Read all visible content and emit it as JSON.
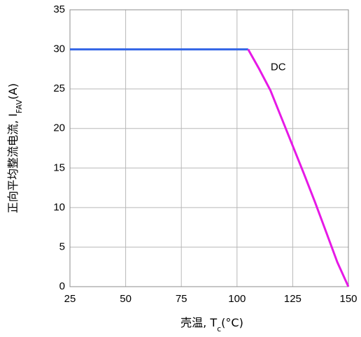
{
  "chart_data": {
    "type": "line",
    "title": "",
    "xlabel": {
      "main": "壳温, T",
      "sub": "c",
      "post": "(°C)"
    },
    "ylabel": {
      "main": "正向平均整流电流, I",
      "sub": "FAV",
      "post": "(A)"
    },
    "xlim": [
      25,
      150
    ],
    "ylim": [
      0,
      35
    ],
    "xticks": [
      "25",
      "50",
      "75",
      "100",
      "125",
      "150"
    ],
    "yticks": [
      "0",
      "5",
      "10",
      "15",
      "20",
      "25",
      "30",
      "35"
    ],
    "grid": true,
    "series": [
      {
        "color": "#3366e6",
        "x": [
          25,
          105
        ],
        "y": [
          30,
          30
        ]
      },
      {
        "name": "DC",
        "color": "#e619e6",
        "x": [
          105,
          110,
          115,
          120,
          125,
          130,
          135,
          140,
          145,
          150
        ],
        "y": [
          30,
          27.5,
          24.8,
          21.3,
          17.8,
          14.3,
          10.7,
          6.9,
          3.1,
          0
        ]
      }
    ],
    "annotations": [
      {
        "text": "DC",
        "x": 118.5,
        "y": 27.7
      }
    ]
  }
}
